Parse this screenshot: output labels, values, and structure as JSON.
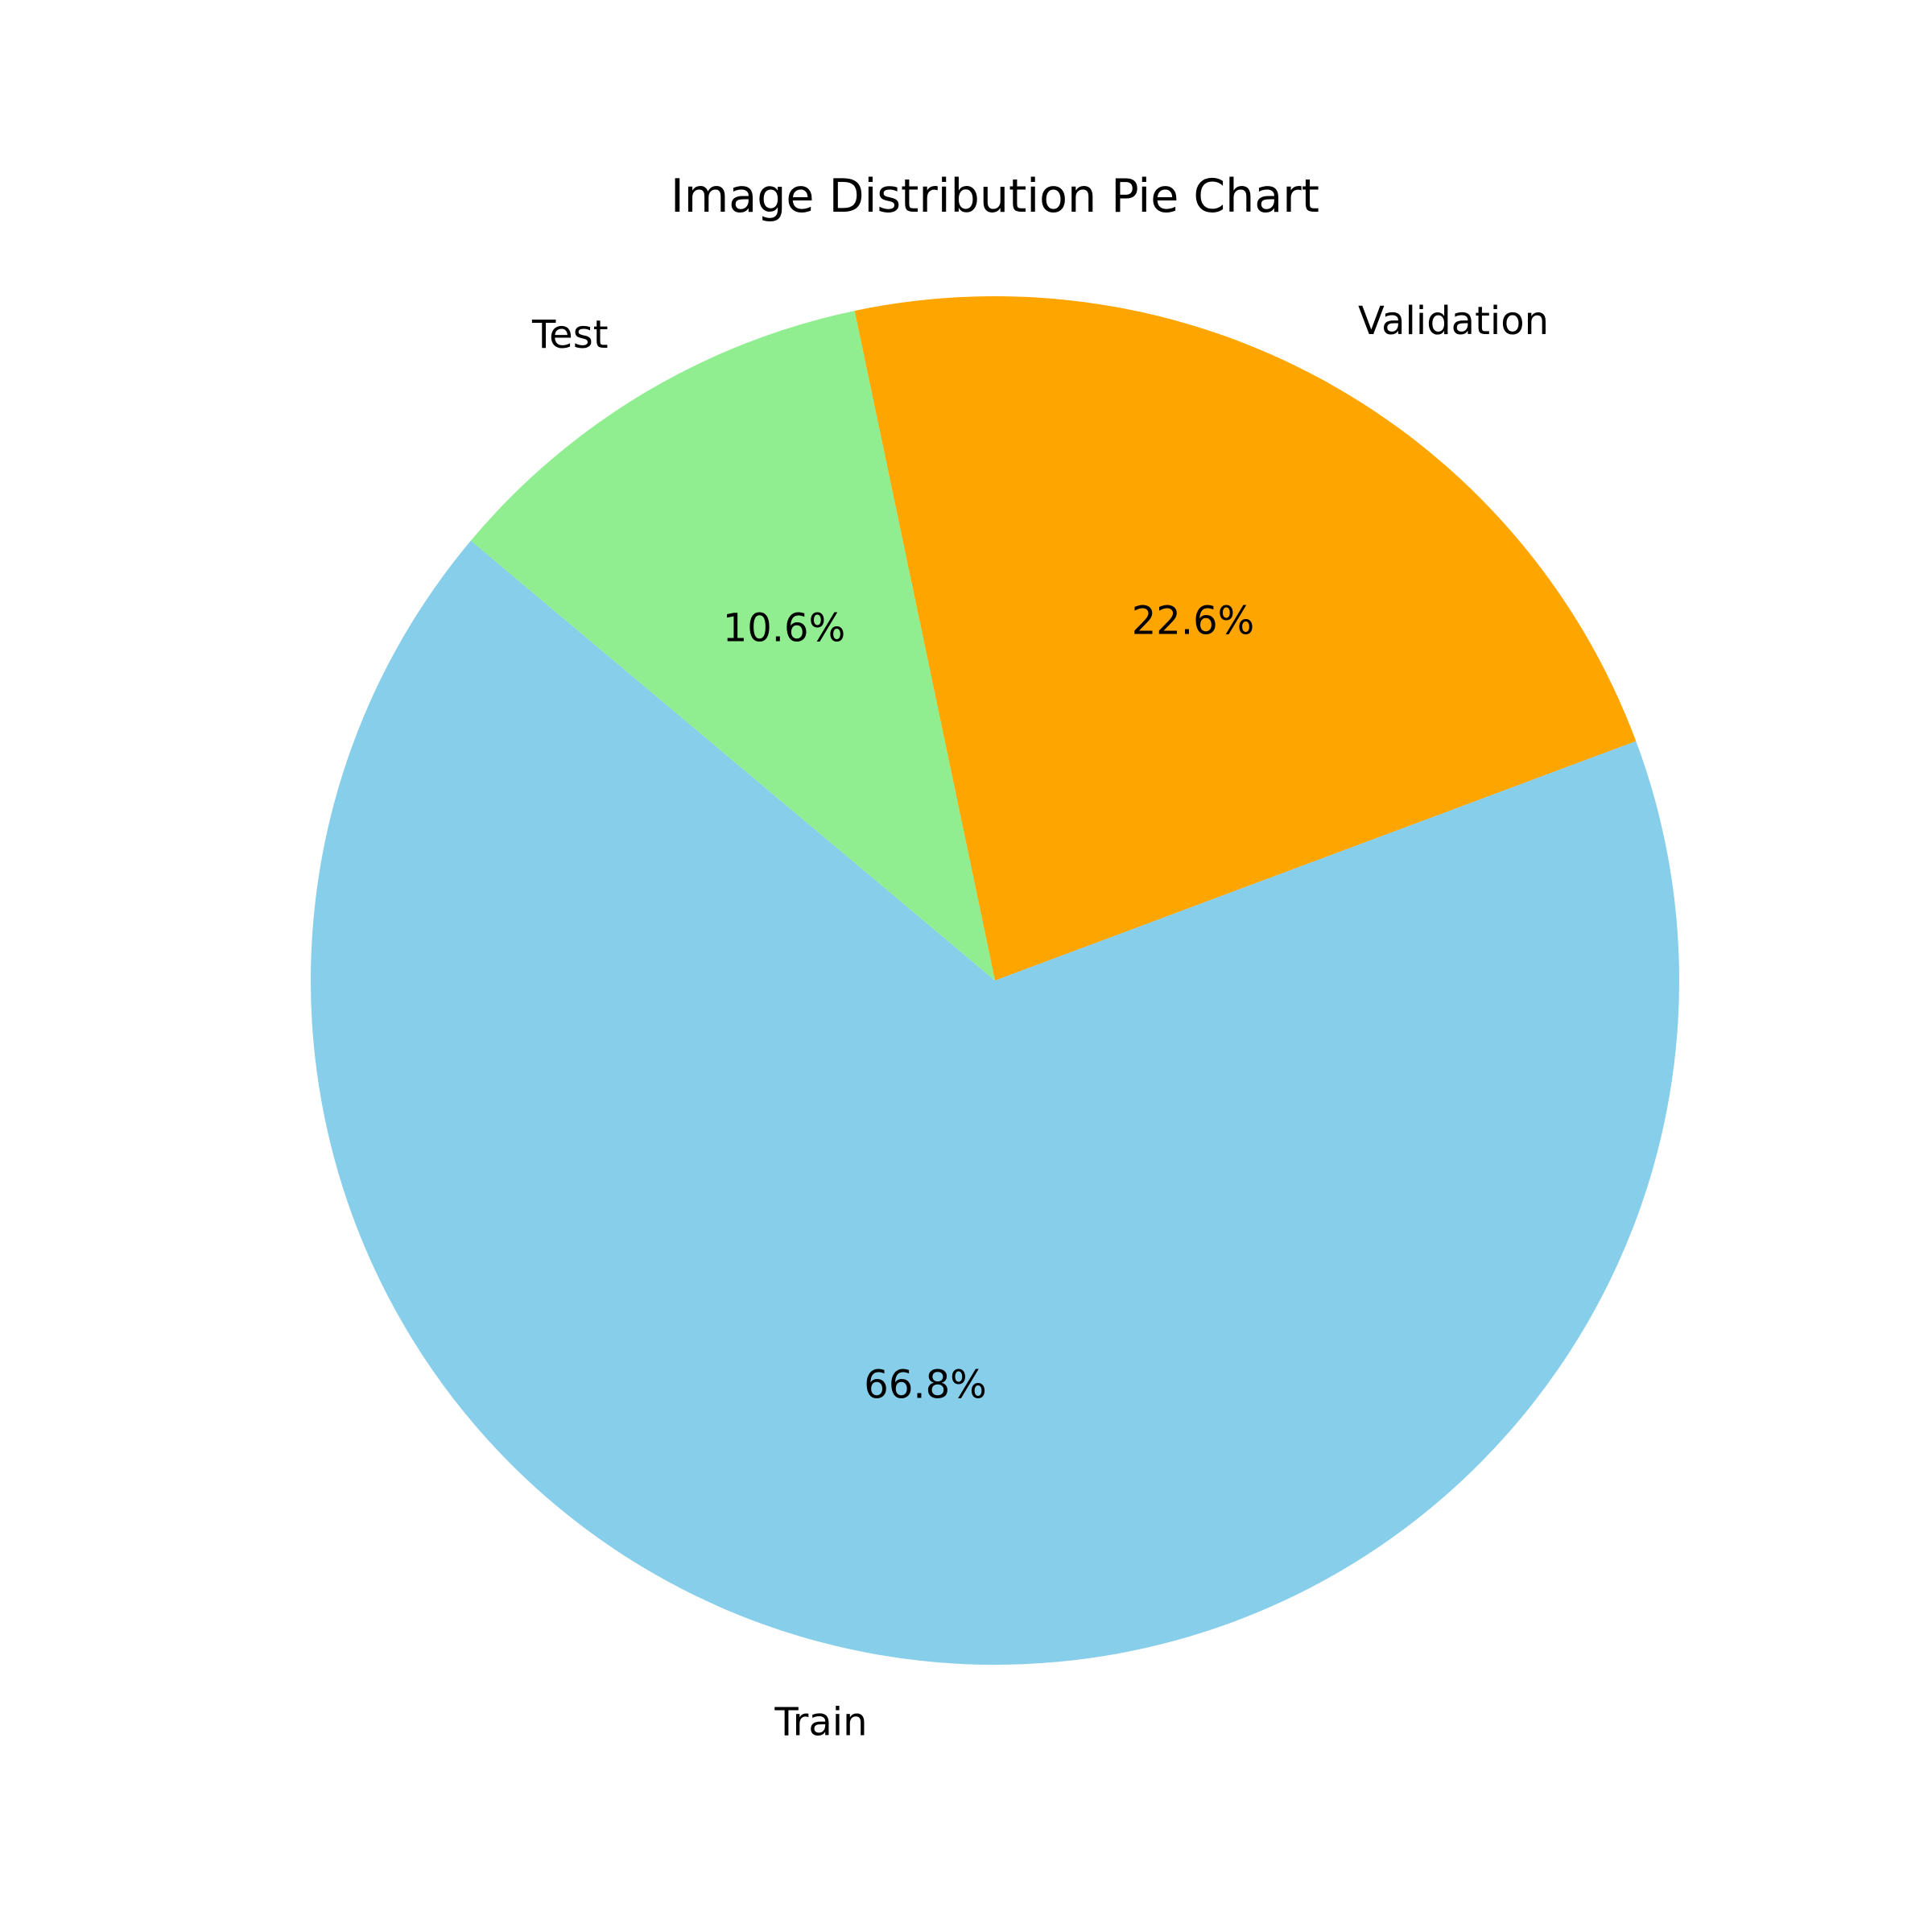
{
  "chart_data": {
    "type": "pie",
    "title": "Image Distribution Pie Chart",
    "start_angle_deg": 140,
    "direction": "counterclockwise",
    "legend": "none",
    "slices": [
      {
        "label": "Train",
        "value": 66.8,
        "pct_label": "66.8%",
        "color": "#87CEEB"
      },
      {
        "label": "Validation",
        "value": 22.6,
        "pct_label": "22.6%",
        "color": "#FFA500"
      },
      {
        "label": "Test",
        "value": 10.6,
        "pct_label": "10.6%",
        "color": "#90EE90"
      }
    ]
  }
}
